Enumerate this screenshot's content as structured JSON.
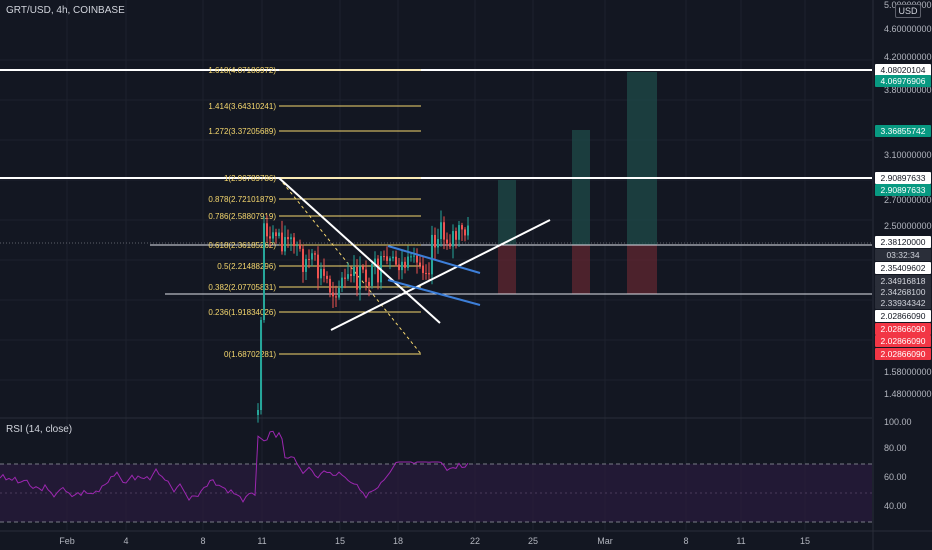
{
  "header": {
    "title": "GRT/USD, 4h, COINBASE",
    "currency_button": "USD"
  },
  "rsi": {
    "title": "RSI (14, close)",
    "ticks": [
      "100.00",
      "80.00",
      "60.00",
      "40.00"
    ]
  },
  "chart_data": {
    "type": "candlestick",
    "symbol": "GRT/USD",
    "interval": "4h",
    "exchange": "COINBASE",
    "price_axis_ticks": [
      "5.00000000",
      "4.60000000",
      "4.20000000",
      "3.80000000",
      "3.10000000",
      "2.70000000",
      "2.50000000",
      "1.58000000",
      "1.48000000"
    ],
    "time_axis_ticks": [
      "Feb",
      "4",
      "8",
      "11",
      "15",
      "18",
      "22",
      "25",
      "Mar",
      "8",
      "11",
      "15"
    ],
    "fibonacci": [
      {
        "ratio": "1.618",
        "price": "4.07186972",
        "label": "1.618(4.07186972)"
      },
      {
        "ratio": "1.414",
        "price": "3.64310241",
        "label": "1.414(3.64310241)"
      },
      {
        "ratio": "1.272",
        "price": "3.37205689",
        "label": "1.272(3.37205689)"
      },
      {
        "ratio": "1",
        "price": "2.90789786",
        "label": "1(2.90789786)"
      },
      {
        "ratio": "0.878",
        "price": "2.72101879",
        "label": "0.878(2.72101879)"
      },
      {
        "ratio": "0.786",
        "price": "2.58807919",
        "label": "0.786(2.58807919)"
      },
      {
        "ratio": "0.618",
        "price": "2.36185262",
        "label": "0.618(2.36185262)"
      },
      {
        "ratio": "0.5",
        "price": "2.21488296",
        "label": "0.5(2.21488296)"
      },
      {
        "ratio": "0.382",
        "price": "2.07705831",
        "label": "0.382(2.07705831)"
      },
      {
        "ratio": "0.236",
        "price": "1.91834026",
        "label": "0.236(1.91834026)"
      },
      {
        "ratio": "0",
        "price": "1.68702281",
        "label": "0(1.68702281)"
      }
    ],
    "price_labels": [
      {
        "text": "4.08020104",
        "style": "white"
      },
      {
        "text": "4.06976906",
        "style": "green"
      },
      {
        "text": "3.36855742",
        "style": "green"
      },
      {
        "text": "2.90897633",
        "style": "white"
      },
      {
        "text": "2.90897633",
        "style": "green"
      },
      {
        "text": "2.38120000",
        "style": "white"
      },
      {
        "text": "03:32:34",
        "style": "dark"
      },
      {
        "text": "2.35409602",
        "style": "white"
      },
      {
        "text": "2.34916818",
        "style": "dark"
      },
      {
        "text": "2.34268100",
        "style": "dark"
      },
      {
        "text": "2.33934342",
        "style": "dark"
      },
      {
        "text": "2.02866090",
        "style": "white"
      },
      {
        "text": "2.02866090",
        "style": "red"
      },
      {
        "text": "2.02866090",
        "style": "red"
      },
      {
        "text": "2.02866090",
        "style": "red"
      }
    ],
    "colors": {
      "background": "#131722",
      "up": "#26a69a",
      "down": "#ef5350",
      "fib": "#f5d76e",
      "rsi": "#9c27b0",
      "rsi_band": "#2a1b3d",
      "trendline": "#ffffff",
      "channel": "#3d7fd9"
    }
  }
}
